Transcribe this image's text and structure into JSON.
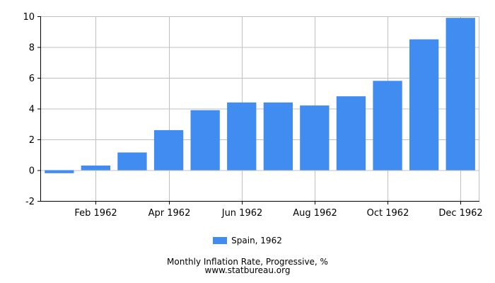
{
  "chart_data": {
    "type": "bar",
    "categories": [
      "Jan 1962",
      "Feb 1962",
      "Mar 1962",
      "Apr 1962",
      "May 1962",
      "Jun 1962",
      "Jul 1962",
      "Aug 1962",
      "Sep 1962",
      "Oct 1962",
      "Nov 1962",
      "Dec 1962"
    ],
    "visible_x_labels": [
      "Feb 1962",
      "Apr 1962",
      "Jun 1962",
      "Aug 1962",
      "Oct 1962",
      "Dec 1962"
    ],
    "series": [
      {
        "name": "Spain, 1962",
        "values": [
          -0.2,
          0.3,
          1.15,
          2.6,
          3.9,
          4.4,
          4.4,
          4.2,
          4.8,
          5.8,
          8.5,
          9.9
        ]
      }
    ],
    "ylim": [
      -2,
      10
    ],
    "yticks": [
      -2,
      0,
      2,
      4,
      6,
      8,
      10
    ],
    "grid": true,
    "legend_position": "bottom-center",
    "title": "Monthly Inflation Rate, Progressive, %",
    "source": "www.statbureau.org",
    "bar_color": "#418cf0"
  }
}
